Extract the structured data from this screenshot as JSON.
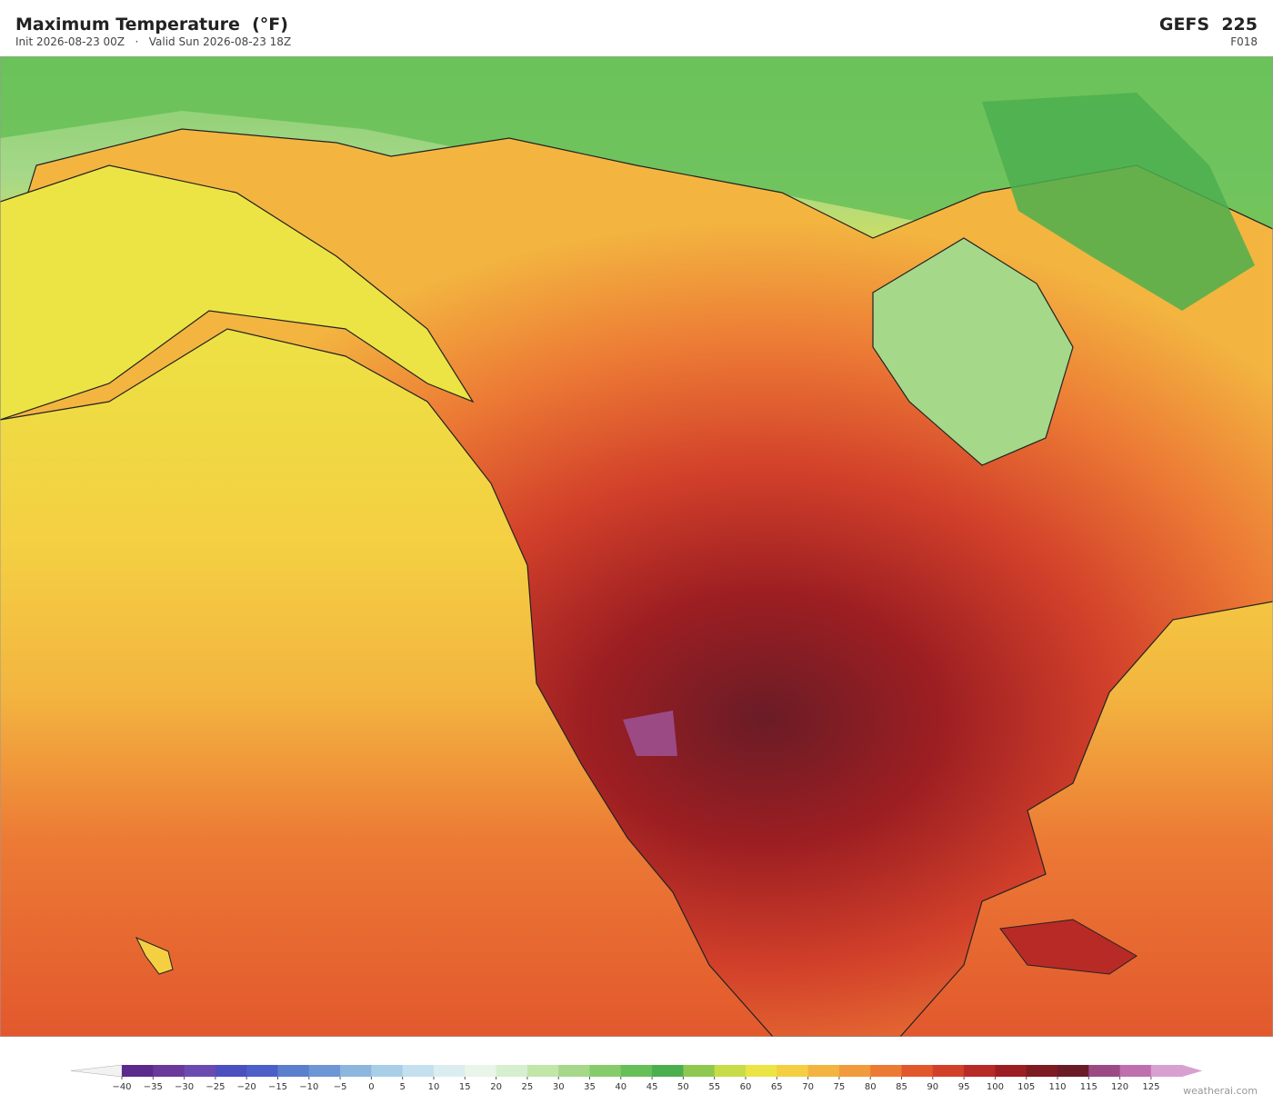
{
  "header": {
    "title": "Maximum Temperature  (°F)",
    "subtitle": "Init 2026-08-23 00Z   ·   Valid Sun 2026-08-23 18Z",
    "model": "GEFS  225",
    "forecast_hour": "F018"
  },
  "colorbar": {
    "ticks": [
      {
        "value": -40,
        "label": "−40"
      },
      {
        "value": -35,
        "label": "−35"
      },
      {
        "value": -30,
        "label": "−30"
      },
      {
        "value": -25,
        "label": "−25"
      },
      {
        "value": -20,
        "label": "−20"
      },
      {
        "value": -15,
        "label": "−15"
      },
      {
        "value": -10,
        "label": "−10"
      },
      {
        "value": -5,
        "label": "−5"
      },
      0,
      5,
      10,
      15,
      20,
      25,
      30,
      35,
      40,
      45,
      50,
      55,
      60,
      65,
      70,
      75,
      80,
      85,
      90,
      95,
      100,
      105,
      110,
      115,
      120,
      125
    ],
    "colors": [
      "#5b2a8c",
      "#6a3a9a",
      "#6b4bb0",
      "#4b4fc0",
      "#4c5fc8",
      "#5a7fcc",
      "#6d96d4",
      "#8db6de",
      "#a9cfe8",
      "#c4e0ef",
      "#dcedf2",
      "#e8f5e8",
      "#d6efcf",
      "#c2e5a8",
      "#a5d889",
      "#86cc6a",
      "#66bf57",
      "#4caf4f",
      "#8fc850",
      "#c8dc48",
      "#ece444",
      "#f4cf42",
      "#f3b540",
      "#f19b3c",
      "#ec7a35",
      "#e2582d",
      "#d2402a",
      "#b82a26",
      "#9c1e22",
      "#7e1a22",
      "#6a1c26",
      "#9b4a84",
      "#c06fae",
      "#d8a0d0"
    ],
    "under_color": "#f2f2f2",
    "over_color": "#d8a0d0"
  },
  "credit": "weatherai.com"
}
